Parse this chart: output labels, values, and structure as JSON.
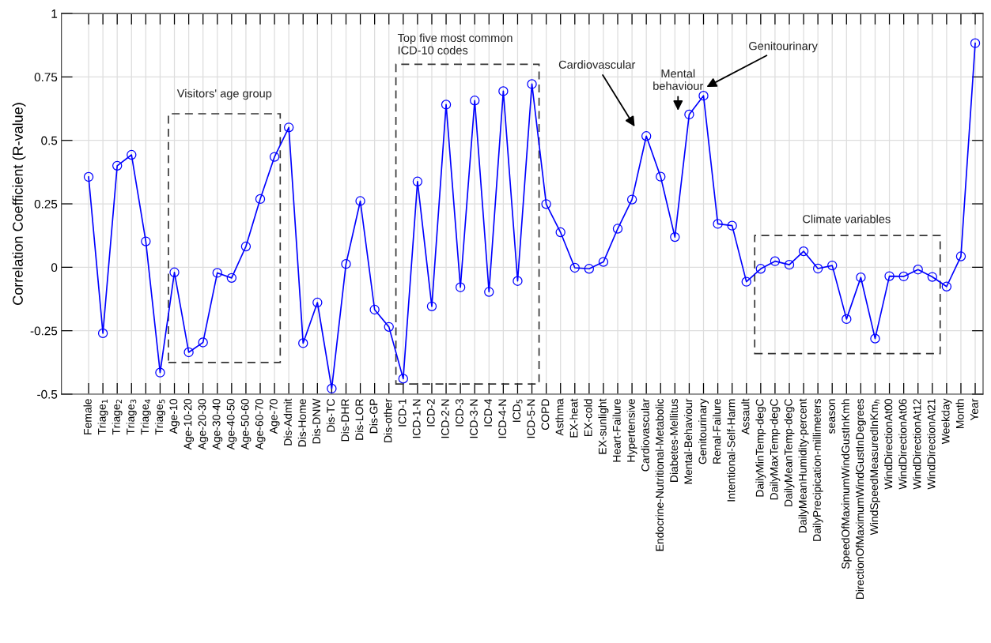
{
  "chart_data": {
    "type": "line",
    "ylabel": "Correlation Coefficient (R-value)",
    "categories": [
      "Female",
      "Triage$_{1}$",
      "Triage$_{2}$",
      "Triage$_{3}$",
      "Triage$_{4}$",
      "Triage$_{5}$",
      "Age-10",
      "Age-10-20",
      "Age-20-30",
      "Age-30-40",
      "Age-40-50",
      "Age-50-60",
      "Age-60-70",
      "Age-70",
      "Dis-Admit",
      "Dis-Home",
      "Dis-DNW",
      "Dis-TC",
      "Dis-DHR",
      "Dis-LOR",
      "Dis-GP",
      "Dis-other",
      "ICD-1",
      "ICD-1-N",
      "ICD-2",
      "ICD-2-N",
      "ICD-3",
      "ICD-3-N",
      "ICD-4",
      "ICD-4-N",
      "ICD$_{5}$",
      "ICD-5-N",
      "COPD",
      "Asthma",
      "EX-heat",
      "EX-cold",
      "EX-sunlight",
      "Heart-Failure",
      "Hypertensive",
      "Cardiovascular",
      "Endocrine-Nutritional-Metabolic",
      "Diabetes-Mellitus",
      "Mental-Behaviour",
      "Genitourinary",
      "Renal-Failure",
      "Intentional-Self-Harm",
      "Assault",
      "DailyMinTemp-degC",
      "DailyMaxTemp-degC",
      "DailyMeanTemp-degC",
      "DailyMeanHumidity-percent",
      "DailyPrecipication-millimeters",
      "season",
      "SpeedOfMaximumWindGustInKmh",
      "DirectionOfMaximumWindGustInDegrees",
      "WindSpeedMeasuredInKm$_{h}$",
      "WindDirectionAt00",
      "WindDirectionAt06",
      "WindDirectionAt12",
      "WindDirectionAt21",
      "Weekday",
      "Month",
      "Year"
    ],
    "series": [
      {
        "color": "#0000ff",
        "values": [
          0.356,
          -0.26,
          0.4,
          0.443,
          0.102,
          -0.415,
          -0.02,
          -0.335,
          -0.296,
          -0.022,
          -0.042,
          0.082,
          0.269,
          0.435,
          0.551,
          -0.299,
          -0.139,
          -0.478,
          0.013,
          0.261,
          -0.167,
          -0.235,
          -0.439,
          0.338,
          -0.154,
          0.641,
          -0.079,
          0.657,
          -0.097,
          0.694,
          -0.054,
          0.722,
          0.249,
          0.138,
          -0.002,
          -0.006,
          0.021,
          0.152,
          0.267,
          0.517,
          0.357,
          0.119,
          0.602,
          0.676,
          0.171,
          0.164,
          -0.057,
          -0.006,
          0.024,
          0.01,
          0.063,
          -0.005,
          0.007,
          -0.204,
          -0.04,
          -0.281,
          -0.035,
          -0.036,
          -0.009,
          -0.038,
          -0.076,
          0.043,
          0.883
        ]
      }
    ],
    "ylim": [
      -0.5,
      1
    ],
    "yticks": [
      -0.5,
      -0.25,
      0,
      0.25,
      0.5,
      0.75,
      1
    ],
    "grid": true,
    "marker": "circle",
    "line_style": "solid",
    "annotations": [
      "Visitors' age group",
      "Top five most common\nICD-10 codes",
      "Climate variables",
      "Cardiovascular",
      "Mental\nbehaviour",
      "Genitourinary"
    ]
  }
}
